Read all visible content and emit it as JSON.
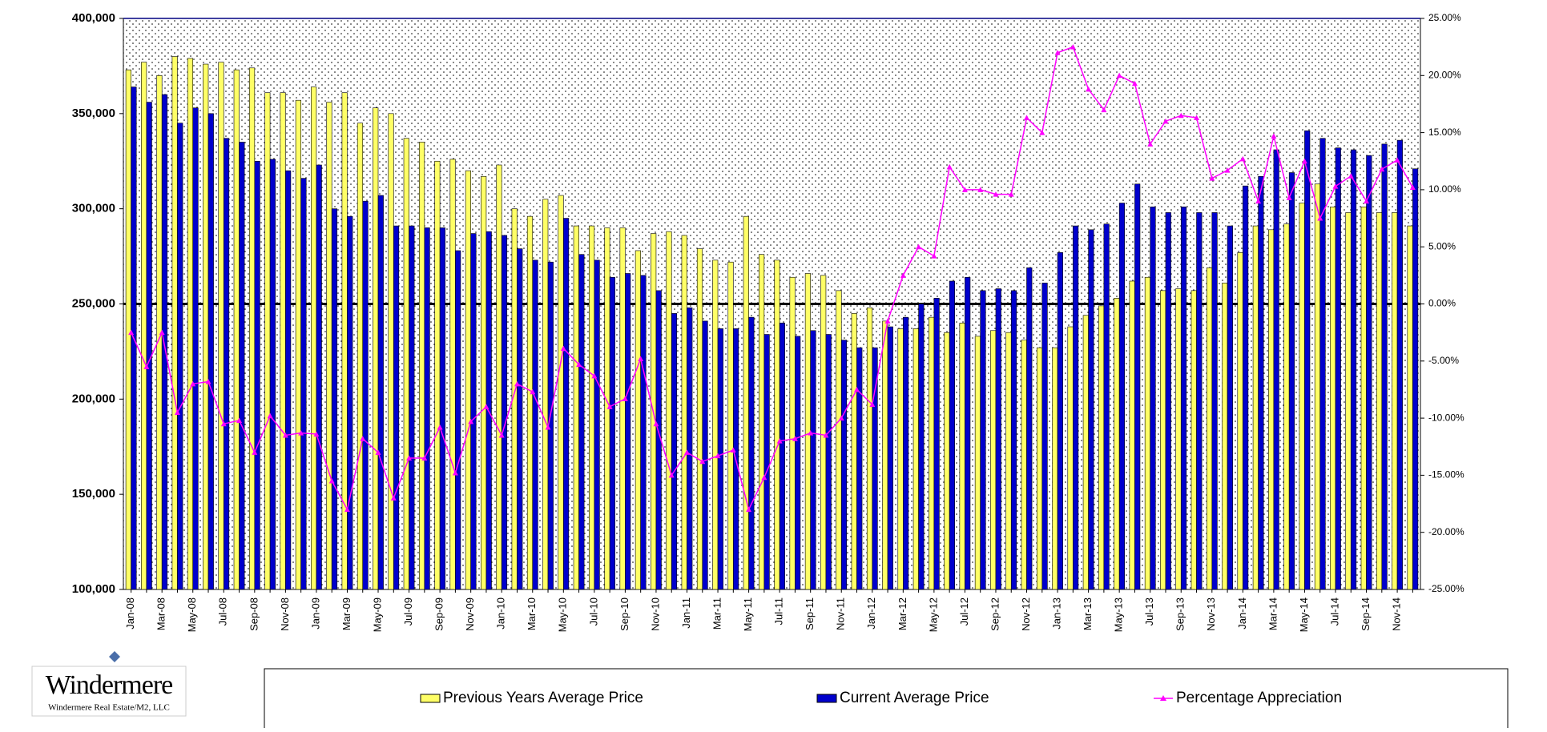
{
  "chart_data": {
    "type": "bar",
    "categories": [
      "Jan-08",
      null,
      "Mar-08",
      null,
      "May-08",
      null,
      "Jul-08",
      null,
      "Sep-08",
      null,
      "Nov-08",
      null,
      "Jan-09",
      null,
      "Mar-09",
      null,
      "May-09",
      null,
      "Jul-09",
      null,
      "Sep-09",
      null,
      "Nov-09",
      null,
      "Jan-10",
      null,
      "Mar-10",
      null,
      "May-10",
      null,
      "Jul-10",
      null,
      "Sep-10",
      null,
      "Nov-10",
      null,
      "Jan-11",
      null,
      "Mar-11",
      null,
      "May-11",
      null,
      "Jul-11",
      null,
      "Sep-11",
      null,
      "Nov-11",
      null,
      "Jan-12",
      null,
      "Mar-12",
      null,
      "May-12",
      null,
      "Jul-12",
      null,
      "Sep-12",
      null,
      "Nov-12",
      null,
      "Jan-13",
      null,
      "Mar-13",
      null,
      "May-13",
      null,
      "Jul-13",
      null,
      "Sep-13",
      null,
      "Nov-13",
      null,
      "Jan-14",
      null,
      "Mar-14",
      null,
      "May-14",
      null,
      "Jul-14",
      null,
      "Sep-14",
      null,
      "Nov-14",
      null
    ],
    "series": [
      {
        "name": "Previous Years Average Price",
        "type": "bar",
        "color": "#ffff66",
        "values": [
          373000,
          377000,
          370000,
          380000,
          379000,
          376000,
          377000,
          373000,
          374000,
          361000,
          361000,
          357000,
          364000,
          356000,
          361000,
          345000,
          353000,
          350000,
          337000,
          335000,
          325000,
          326000,
          320000,
          317000,
          323000,
          300000,
          296000,
          305000,
          307000,
          291000,
          291000,
          290000,
          290000,
          278000,
          287000,
          288000,
          286000,
          279000,
          273000,
          272000,
          296000,
          276000,
          273000,
          264000,
          266000,
          265000,
          257000,
          245000,
          248000,
          241000,
          237000,
          237000,
          243000,
          235000,
          240000,
          233000,
          236000,
          235000,
          231000,
          227000,
          227000,
          238000,
          244000,
          249000,
          253000,
          262000,
          264000,
          257000,
          258000,
          257000,
          269000,
          261000,
          277000,
          291000,
          289000,
          292000,
          303000,
          313000,
          301000,
          298000,
          301000,
          298000,
          298000,
          291000
        ]
      },
      {
        "name": "Current Average Price",
        "type": "bar",
        "color": "#0000cc",
        "values": [
          364000,
          356000,
          360000,
          345000,
          353000,
          350000,
          337000,
          335000,
          325000,
          326000,
          320000,
          316000,
          323000,
          300000,
          296000,
          304000,
          307000,
          291000,
          291000,
          290000,
          290000,
          278000,
          287000,
          288000,
          286000,
          279000,
          273000,
          272000,
          295000,
          276000,
          273000,
          264000,
          266000,
          265000,
          257000,
          245000,
          248000,
          241000,
          237000,
          237000,
          243000,
          234000,
          240000,
          233000,
          236000,
          234000,
          231000,
          227000,
          227000,
          238000,
          243000,
          250000,
          253000,
          262000,
          264000,
          257000,
          258000,
          257000,
          269000,
          261000,
          277000,
          291000,
          289000,
          292000,
          303000,
          313000,
          301000,
          298000,
          301000,
          298000,
          298000,
          291000,
          312000,
          317000,
          331000,
          319000,
          341000,
          337000,
          332000,
          331000,
          328000,
          334000,
          336000,
          321000
        ]
      },
      {
        "name": "Percentage Appreciation",
        "type": "line",
        "axis": "y2",
        "color": "#ff00ff",
        "values": [
          -2.5,
          -5.5,
          -2.5,
          -9.5,
          -7,
          -6.8,
          -10.5,
          -10.2,
          -13,
          -9.8,
          -11.5,
          -11.3,
          -11.4,
          -15.5,
          -18,
          -11.8,
          -13,
          -17,
          -13.5,
          -13.5,
          -10.8,
          -14.8,
          -10.3,
          -9,
          -11.5,
          -7,
          -7.7,
          -10.8,
          -3.9,
          -5.3,
          -6.3,
          -9,
          -8.3,
          -4.8,
          -10.5,
          -15,
          -13,
          -13.8,
          -13.3,
          -12.8,
          -18,
          -15.2,
          -12,
          -11.8,
          -11.3,
          -11.5,
          -10,
          -7.5,
          -8.8,
          -1.5,
          2.5,
          5,
          4.2,
          12,
          10,
          10,
          9.6,
          9.6,
          16.3,
          15,
          22,
          22.5,
          18.8,
          17,
          20,
          19.3,
          14,
          16,
          16.5,
          16.3,
          11,
          11.7,
          12.7,
          9,
          14.7,
          9.3,
          12.5,
          7.5,
          10.3,
          11.2,
          9,
          11.8,
          12.6,
          10.2
        ]
      }
    ],
    "ylim": [
      100000,
      400000
    ],
    "yticks": [
      {
        "value": 100000,
        "label": "100,000"
      },
      {
        "value": 150000,
        "label": "150,000"
      },
      {
        "value": 200000,
        "label": "200,000"
      },
      {
        "value": 250000,
        "label": "250,000"
      },
      {
        "value": 300000,
        "label": "300,000"
      },
      {
        "value": 350000,
        "label": "350,000"
      },
      {
        "value": 400000,
        "label": "400,000"
      }
    ],
    "y2lim": [
      -25,
      25
    ],
    "y2ticks": [
      {
        "value": 25,
        "label": "25.00%"
      },
      {
        "value": 20,
        "label": "20.00%"
      },
      {
        "value": 15,
        "label": "15.00%"
      },
      {
        "value": 10,
        "label": "10.00%"
      },
      {
        "value": 5,
        "label": "5.00%"
      },
      {
        "value": 0,
        "label": "0.00%"
      },
      {
        "value": -5,
        "label": "-5.00%"
      },
      {
        "value": -10,
        "label": "-10.00%"
      },
      {
        "value": -15,
        "label": "-15.00%"
      },
      {
        "value": -20,
        "label": "-20.00%"
      },
      {
        "value": -25,
        "label": "-25.00%"
      }
    ],
    "legend": "bottom"
  },
  "logo": {
    "name": "Windermere",
    "subtitle": "Windermere Real Estate/M2, LLC"
  }
}
